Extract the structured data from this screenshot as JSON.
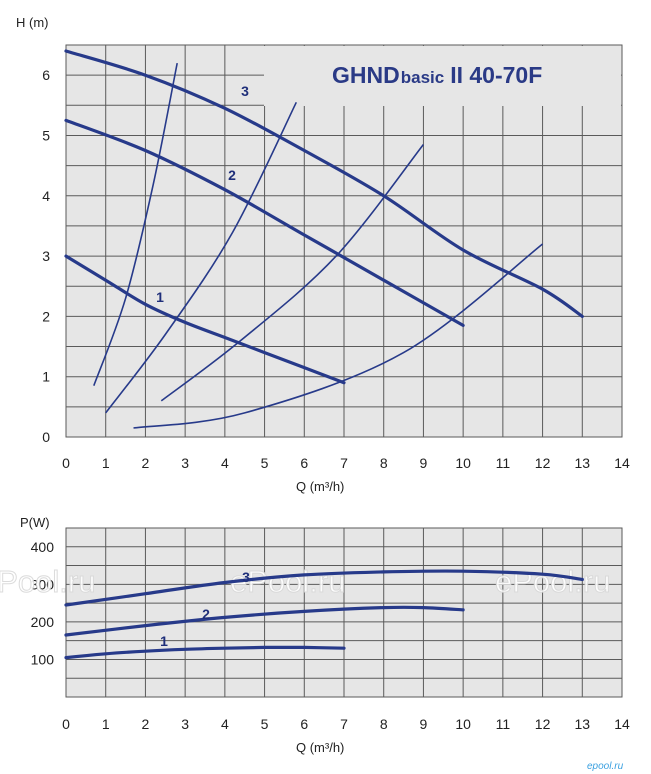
{
  "chart_data": [
    {
      "type": "line",
      "id": "head",
      "title": "GHNDbasic II 40-70F",
      "title_parts": [
        "GHND",
        "basic",
        "II 40-70F"
      ],
      "xlabel": "Q (m³/h)",
      "ylabel": "H (m)",
      "xlim": [
        0,
        14
      ],
      "ylim": [
        0,
        6.5
      ],
      "xticks": [
        0,
        1,
        2,
        3,
        4,
        5,
        6,
        7,
        8,
        9,
        10,
        11,
        12,
        13,
        14
      ],
      "yticks": [
        0,
        1,
        2,
        3,
        4,
        5,
        6
      ],
      "grid": true,
      "series": [
        {
          "name": "1",
          "x": [
            0,
            1,
            2,
            3,
            4,
            5,
            6,
            7
          ],
          "y": [
            3.0,
            2.6,
            2.2,
            1.9,
            1.65,
            1.4,
            1.15,
            0.9
          ]
        },
        {
          "name": "2",
          "x": [
            0,
            2,
            4,
            6,
            8,
            10
          ],
          "y": [
            5.25,
            4.75,
            4.1,
            3.35,
            2.6,
            1.85
          ]
        },
        {
          "name": "3",
          "x": [
            0,
            2,
            4,
            6,
            8,
            10,
            12,
            13
          ],
          "y": [
            6.4,
            6.0,
            5.45,
            4.75,
            4.0,
            3.1,
            2.45,
            2.0
          ]
        }
      ],
      "system_curves": [
        {
          "x": [
            0.7,
            1.5,
            2.2,
            2.8
          ],
          "y": [
            0.85,
            2.3,
            4.2,
            6.2
          ]
        },
        {
          "x": [
            1.0,
            2.5,
            4.2,
            5.8
          ],
          "y": [
            0.4,
            1.7,
            3.4,
            5.55
          ]
        },
        {
          "x": [
            2.4,
            4.4,
            6.8,
            9.0
          ],
          "y": [
            0.6,
            1.6,
            3.0,
            4.85
          ]
        },
        {
          "x": [
            1.7,
            4.5,
            8.5,
            12.0
          ],
          "y": [
            0.15,
            0.4,
            1.4,
            3.2
          ]
        }
      ]
    },
    {
      "type": "line",
      "id": "power",
      "xlabel": "Q (m³/h)",
      "ylabel": "P(W)",
      "xlim": [
        0,
        14
      ],
      "ylim": [
        0,
        450
      ],
      "xticks": [
        0,
        1,
        2,
        3,
        4,
        5,
        6,
        7,
        8,
        9,
        10,
        11,
        12,
        13,
        14
      ],
      "yticks": [
        100,
        200,
        300,
        400
      ],
      "grid": true,
      "series": [
        {
          "name": "1",
          "x": [
            0,
            1,
            2,
            3,
            4,
            5,
            6,
            7
          ],
          "y": [
            105,
            115,
            122,
            127,
            130,
            132,
            132,
            130
          ]
        },
        {
          "name": "2",
          "x": [
            0,
            2,
            4,
            6,
            8,
            9,
            10
          ],
          "y": [
            165,
            190,
            212,
            228,
            238,
            238,
            232
          ]
        },
        {
          "name": "3",
          "x": [
            0,
            2,
            4,
            6,
            8,
            10,
            12,
            13
          ],
          "y": [
            245,
            275,
            305,
            325,
            333,
            335,
            327,
            313
          ]
        }
      ]
    }
  ],
  "watermark": "ePool.ru",
  "corner_text": "epool.ru",
  "colors": {
    "plot_bg": "#e6e6e6",
    "grid": "#5a5a5a",
    "curve": "#273a8a",
    "title": "#2a3a86"
  }
}
